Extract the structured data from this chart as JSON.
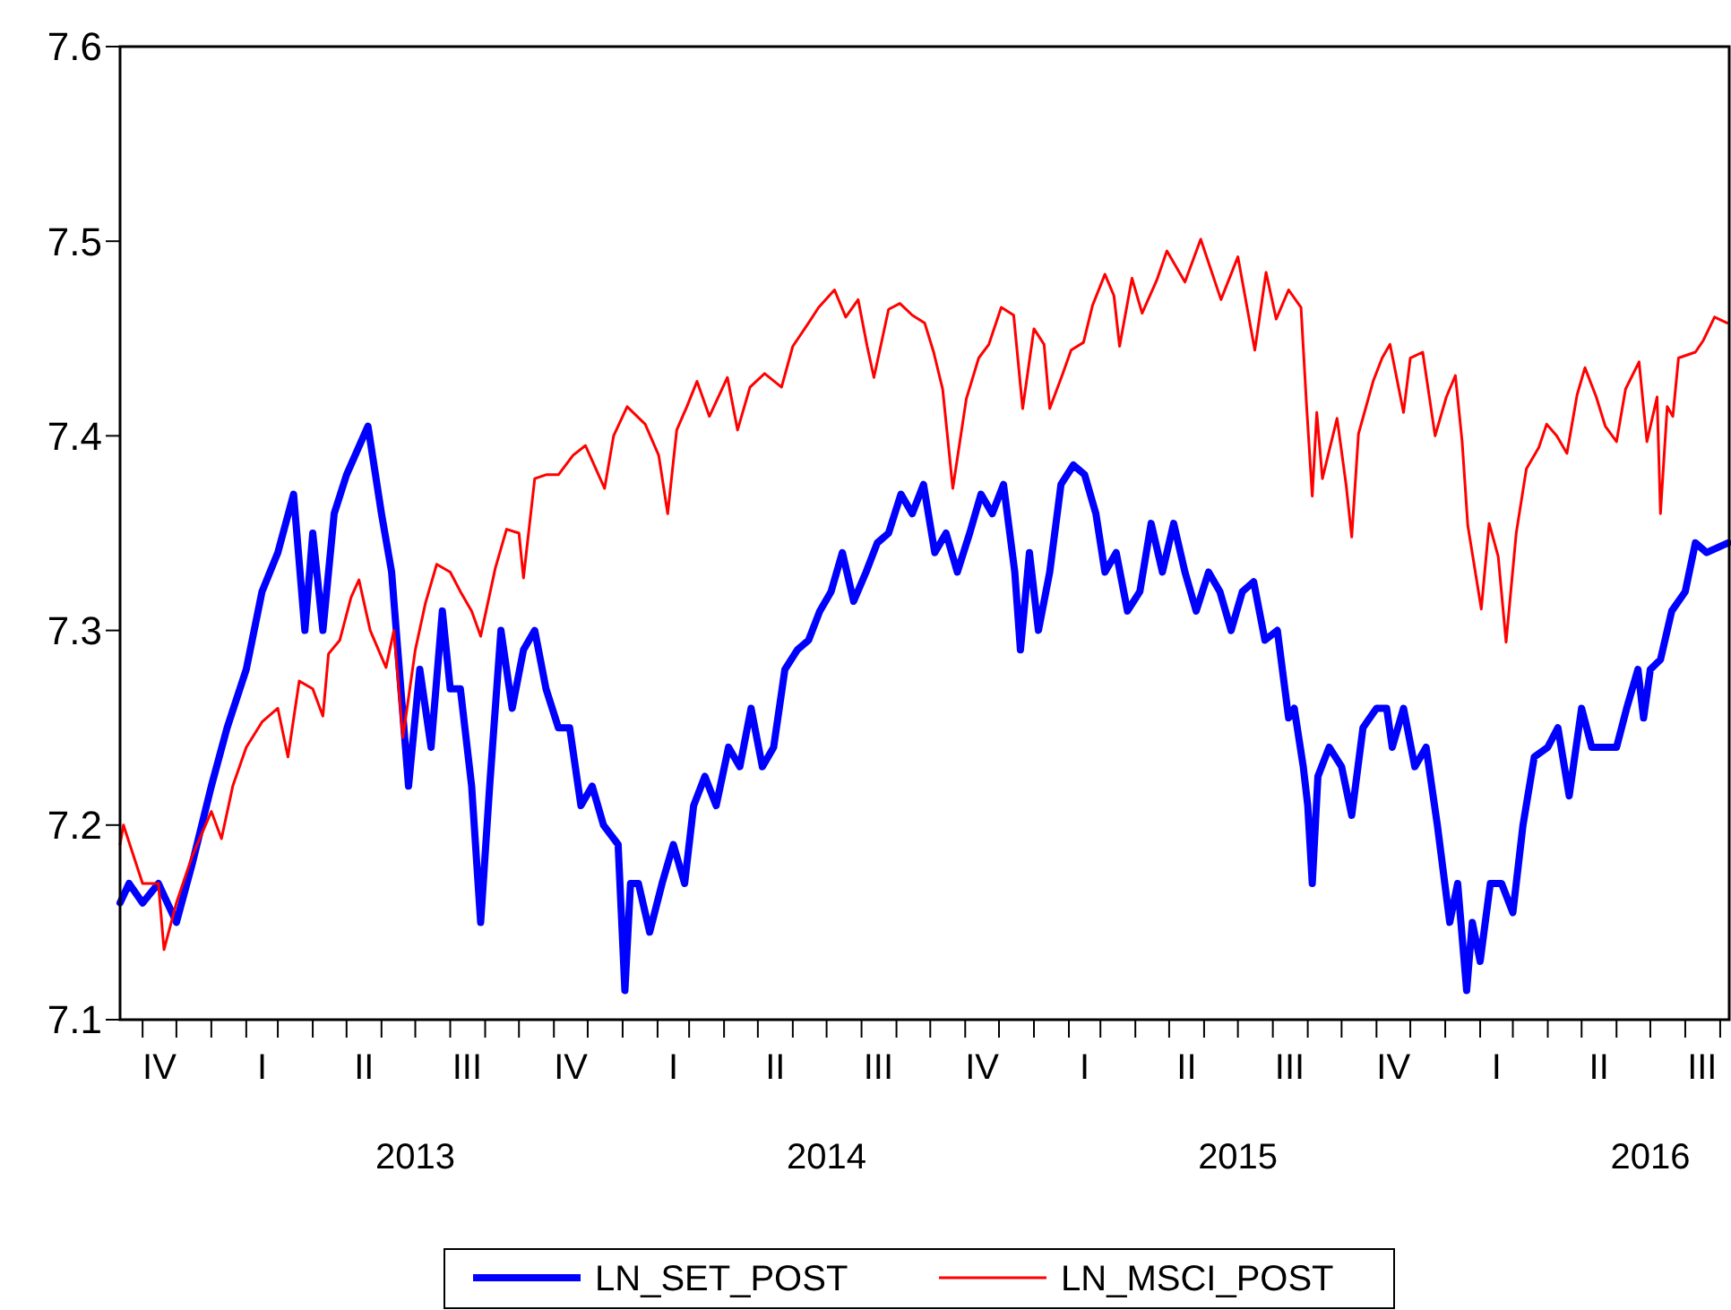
{
  "chart_data": {
    "type": "line",
    "xlim": [
      "2012-10-12",
      "2016-09-09"
    ],
    "ylim": [
      7.1,
      7.6
    ],
    "yticks": [
      7.1,
      7.2,
      7.3,
      7.4,
      7.5,
      7.6
    ],
    "xticks": [
      {
        "value": "2012-11-01",
        "label": null
      },
      {
        "value": "2012-12-01",
        "label": null
      },
      {
        "value": "2013-01-01",
        "label": null
      },
      {
        "value": "2013-02-01",
        "label": null
      },
      {
        "value": "2013-03-01",
        "label": null
      },
      {
        "value": "2013-04-01",
        "label": null
      },
      {
        "value": "2013-05-01",
        "label": null
      },
      {
        "value": "2013-06-01",
        "label": null
      },
      {
        "value": "2013-07-01",
        "label": null
      },
      {
        "value": "2013-07-01",
        "label": "2013"
      },
      {
        "value": "2013-08-01",
        "label": null
      },
      {
        "value": "2013-09-01",
        "label": null
      },
      {
        "value": "2013-10-01",
        "label": null
      },
      {
        "value": "2013-11-01",
        "label": null
      },
      {
        "value": "2013-12-01",
        "label": null
      },
      {
        "value": "2014-01-01",
        "label": null
      },
      {
        "value": "2014-02-01",
        "label": null
      },
      {
        "value": "2014-03-01",
        "label": null
      },
      {
        "value": "2014-04-01",
        "label": null
      },
      {
        "value": "2014-05-01",
        "label": null
      },
      {
        "value": "2014-06-01",
        "label": null
      },
      {
        "value": "2014-07-01",
        "label": null
      },
      {
        "value": "2014-07-01",
        "label": "2014"
      },
      {
        "value": "2014-08-01",
        "label": null
      },
      {
        "value": "2014-09-01",
        "label": null
      },
      {
        "value": "2014-10-01",
        "label": null
      },
      {
        "value": "2014-11-01",
        "label": null
      },
      {
        "value": "2014-12-01",
        "label": null
      },
      {
        "value": "2015-01-01",
        "label": null
      },
      {
        "value": "2015-02-01",
        "label": null
      },
      {
        "value": "2015-03-01",
        "label": null
      },
      {
        "value": "2015-04-01",
        "label": null
      },
      {
        "value": "2015-05-01",
        "label": null
      },
      {
        "value": "2015-06-01",
        "label": null
      },
      {
        "value": "2015-07-01",
        "label": null
      },
      {
        "value": "2015-07-01",
        "label": "2015"
      },
      {
        "value": "2015-08-01",
        "label": null
      },
      {
        "value": "2015-09-01",
        "label": null
      },
      {
        "value": "2015-10-01",
        "label": null
      },
      {
        "value": "2015-11-01",
        "label": null
      },
      {
        "value": "2015-12-01",
        "label": null
      },
      {
        "value": "2016-01-01",
        "label": null
      },
      {
        "value": "2016-02-01",
        "label": null
      },
      {
        "value": "2016-03-01",
        "label": null
      },
      {
        "value": "2016-04-01",
        "label": null
      },
      {
        "value": "2016-05-01",
        "label": null
      },
      {
        "value": "2016-06-01",
        "label": null
      },
      {
        "value": "2016-07-01",
        "label": null
      },
      {
        "value": "2016-07-01",
        "label": "2016"
      },
      {
        "value": "2016-08-01",
        "label": null
      },
      {
        "value": "2016-09-01",
        "label": null
      }
    ],
    "annotations": [
      "IV",
      "I",
      "II",
      "III",
      "IV",
      "I",
      "II",
      "III",
      "IV",
      "I",
      "II",
      "III",
      "IV",
      "I",
      "II",
      "III"
    ],
    "legend": "bottom",
    "grid": false,
    "marker": "none",
    "line_style": "solid",
    "series": [
      {
        "name": "LN_SET_POST",
        "color": "#0000ff",
        "x": [
          "2012-10-12",
          "2012-10-20",
          "2012-11-01",
          "2012-11-15",
          "2012-12-01",
          "2012-12-15",
          "2013-01-01",
          "2013-01-15",
          "2013-02-01",
          "2013-02-15",
          "2013-03-01",
          "2013-03-15",
          "2013-03-25",
          "2013-04-01",
          "2013-04-10",
          "2013-04-20",
          "2013-05-01",
          "2013-05-20",
          "2013-06-01",
          "2013-06-10",
          "2013-06-25",
          "2013-07-05",
          "2013-07-15",
          "2013-07-25",
          "2013-08-01",
          "2013-08-10",
          "2013-08-20",
          "2013-08-28",
          "2013-09-05",
          "2013-09-15",
          "2013-09-25",
          "2013-10-05",
          "2013-10-15",
          "2013-10-25",
          "2013-11-05",
          "2013-11-15",
          "2013-11-25",
          "2013-12-05",
          "2013-12-15",
          "2013-12-28",
          "2014-01-03",
          "2014-01-08",
          "2014-01-15",
          "2014-01-25",
          "2014-02-05",
          "2014-02-15",
          "2014-02-25",
          "2014-03-05",
          "2014-03-15",
          "2014-03-25",
          "2014-04-05",
          "2014-04-15",
          "2014-04-25",
          "2014-05-05",
          "2014-05-15",
          "2014-05-25",
          "2014-06-05",
          "2014-06-15",
          "2014-06-25",
          "2014-07-05",
          "2014-07-15",
          "2014-07-25",
          "2014-08-05",
          "2014-08-15",
          "2014-08-25",
          "2014-09-05",
          "2014-09-15",
          "2014-09-25",
          "2014-10-05",
          "2014-10-15",
          "2014-10-25",
          "2014-11-05",
          "2014-11-15",
          "2014-11-25",
          "2014-12-05",
          "2014-12-15",
          "2014-12-20",
          "2014-12-28",
          "2015-01-05",
          "2015-01-15",
          "2015-01-25",
          "2015-02-05",
          "2015-02-15",
          "2015-02-25",
          "2015-03-05",
          "2015-03-15",
          "2015-03-25",
          "2015-04-05",
          "2015-04-15",
          "2015-04-25",
          "2015-05-05",
          "2015-05-15",
          "2015-05-25",
          "2015-06-05",
          "2015-06-15",
          "2015-06-25",
          "2015-07-05",
          "2015-07-15",
          "2015-07-25",
          "2015-08-05",
          "2015-08-15",
          "2015-08-20",
          "2015-08-28",
          "2015-09-01",
          "2015-09-05",
          "2015-09-10",
          "2015-09-20",
          "2015-10-01",
          "2015-10-10",
          "2015-10-20",
          "2015-11-01",
          "2015-11-10",
          "2015-11-15",
          "2015-11-25",
          "2015-12-05",
          "2015-12-15",
          "2015-12-25",
          "2016-01-05",
          "2016-01-12",
          "2016-01-20",
          "2016-01-25",
          "2016-02-01",
          "2016-02-10",
          "2016-02-20",
          "2016-03-01",
          "2016-03-10",
          "2016-03-20",
          "2016-04-01",
          "2016-04-10",
          "2016-04-20",
          "2016-05-01",
          "2016-05-10",
          "2016-05-20",
          "2016-06-01",
          "2016-06-10",
          "2016-06-20",
          "2016-06-25",
          "2016-07-01",
          "2016-07-10",
          "2016-07-20",
          "2016-08-01",
          "2016-08-10",
          "2016-08-20",
          "2016-09-08"
        ],
        "values": [
          7.16,
          7.17,
          7.16,
          7.17,
          7.15,
          7.18,
          7.22,
          7.25,
          7.28,
          7.32,
          7.34,
          7.37,
          7.3,
          7.35,
          7.3,
          7.36,
          7.38,
          7.405,
          7.36,
          7.33,
          7.22,
          7.28,
          7.24,
          7.31,
          7.27,
          7.27,
          7.22,
          7.15,
          7.22,
          7.3,
          7.26,
          7.29,
          7.3,
          7.27,
          7.25,
          7.25,
          7.21,
          7.22,
          7.2,
          7.19,
          7.115,
          7.17,
          7.17,
          7.145,
          7.17,
          7.19,
          7.17,
          7.21,
          7.225,
          7.21,
          7.24,
          7.23,
          7.26,
          7.23,
          7.24,
          7.28,
          7.29,
          7.295,
          7.31,
          7.32,
          7.34,
          7.315,
          7.33,
          7.345,
          7.35,
          7.37,
          7.36,
          7.375,
          7.34,
          7.35,
          7.33,
          7.35,
          7.37,
          7.36,
          7.375,
          7.33,
          7.29,
          7.34,
          7.3,
          7.33,
          7.375,
          7.385,
          7.38,
          7.36,
          7.33,
          7.34,
          7.31,
          7.32,
          7.355,
          7.33,
          7.355,
          7.33,
          7.31,
          7.33,
          7.32,
          7.3,
          7.32,
          7.325,
          7.295,
          7.3,
          7.255,
          7.26,
          7.23,
          7.21,
          7.17,
          7.225,
          7.24,
          7.23,
          7.205,
          7.25,
          7.26,
          7.26,
          7.24,
          7.26,
          7.23,
          7.24,
          7.2,
          7.15,
          7.17,
          7.115,
          7.15,
          7.13,
          7.17,
          7.17,
          7.155,
          7.2,
          7.235,
          7.24,
          7.25,
          7.215,
          7.26,
          7.24,
          7.24,
          7.24,
          7.26,
          7.28,
          7.255,
          7.28,
          7.285,
          7.31,
          7.32,
          7.345,
          7.34,
          7.345
        ]
      },
      {
        "name": "LN_MSCI_POST",
        "color": "#ff0000",
        "x": [
          "2012-10-12",
          "2012-10-15",
          "2012-11-01",
          "2012-11-15",
          "2012-11-20",
          "2012-12-01",
          "2012-12-15",
          "2013-01-01",
          "2013-01-10",
          "2013-01-20",
          "2013-02-01",
          "2013-02-15",
          "2013-03-01",
          "2013-03-10",
          "2013-03-20",
          "2013-04-01",
          "2013-04-10",
          "2013-04-15",
          "2013-04-25",
          "2013-05-05",
          "2013-05-12",
          "2013-05-22",
          "2013-06-05",
          "2013-06-12",
          "2013-06-20",
          "2013-07-01",
          "2013-07-10",
          "2013-07-20",
          "2013-08-01",
          "2013-08-10",
          "2013-08-20",
          "2013-08-28",
          "2013-09-10",
          "2013-09-20",
          "2013-10-01",
          "2013-10-05",
          "2013-10-15",
          "2013-10-25",
          "2013-11-05",
          "2013-11-18",
          "2013-11-29",
          "2013-12-16",
          "2013-12-24",
          "2014-01-05",
          "2014-01-21",
          "2014-02-02",
          "2014-02-10",
          "2014-02-18",
          "2014-02-27",
          "2014-03-08",
          "2014-03-19",
          "2014-04-04",
          "2014-04-13",
          "2014-04-24",
          "2014-05-07",
          "2014-05-22",
          "2014-06-01",
          "2014-06-15",
          "2014-06-24",
          "2014-07-08",
          "2014-07-18",
          "2014-07-29",
          "2014-08-06",
          "2014-08-12",
          "2014-08-25",
          "2014-09-04",
          "2014-09-15",
          "2014-09-26",
          "2014-10-04",
          "2014-10-12",
          "2014-10-21",
          "2014-11-02",
          "2014-11-13",
          "2014-11-22",
          "2014-12-03",
          "2014-12-14",
          "2014-12-22",
          "2015-01-01",
          "2015-01-10",
          "2015-01-15",
          "2015-01-26",
          "2015-02-03",
          "2015-02-14",
          "2015-02-22",
          "2015-03-05",
          "2015-03-13",
          "2015-03-18",
          "2015-03-29",
          "2015-04-07",
          "2015-04-20",
          "2015-04-29",
          "2015-05-15",
          "2015-05-29",
          "2015-06-16",
          "2015-07-01",
          "2015-07-16",
          "2015-07-26",
          "2015-08-04",
          "2015-08-15",
          "2015-08-26",
          "2015-08-31",
          "2015-09-05",
          "2015-09-09",
          "2015-09-14",
          "2015-09-27",
          "2015-10-05",
          "2015-10-10",
          "2015-10-16",
          "2015-10-29",
          "2015-11-06",
          "2015-11-13",
          "2015-11-25",
          "2015-12-01",
          "2015-12-12",
          "2015-12-23",
          "2016-01-02",
          "2016-01-10",
          "2016-01-16",
          "2016-01-21",
          "2016-02-02",
          "2016-02-09",
          "2016-02-17",
          "2016-02-24",
          "2016-03-04",
          "2016-03-13",
          "2016-03-24",
          "2016-03-31",
          "2016-04-09",
          "2016-04-18",
          "2016-04-27",
          "2016-05-04",
          "2016-05-14",
          "2016-05-22",
          "2016-06-01",
          "2016-06-09",
          "2016-06-21",
          "2016-06-28",
          "2016-07-07",
          "2016-07-10",
          "2016-07-16",
          "2016-07-21",
          "2016-07-26",
          "2016-08-10",
          "2016-08-17",
          "2016-08-27",
          "2016-09-07"
        ],
        "values": [
          7.19,
          7.2,
          7.17,
          7.17,
          7.136,
          7.16,
          7.184,
          7.207,
          7.193,
          7.22,
          7.24,
          7.253,
          7.26,
          7.235,
          7.274,
          7.27,
          7.256,
          7.288,
          7.295,
          7.317,
          7.326,
          7.3,
          7.281,
          7.3,
          7.245,
          7.29,
          7.314,
          7.334,
          7.33,
          7.32,
          7.31,
          7.297,
          7.332,
          7.352,
          7.35,
          7.327,
          7.378,
          7.38,
          7.38,
          7.39,
          7.395,
          7.373,
          7.4,
          7.415,
          7.406,
          7.39,
          7.36,
          7.403,
          7.415,
          7.428,
          7.41,
          7.43,
          7.403,
          7.425,
          7.432,
          7.425,
          7.446,
          7.458,
          7.466,
          7.475,
          7.461,
          7.47,
          7.446,
          7.43,
          7.465,
          7.468,
          7.462,
          7.458,
          7.443,
          7.424,
          7.373,
          7.419,
          7.44,
          7.447,
          7.466,
          7.462,
          7.414,
          7.455,
          7.447,
          7.414,
          7.431,
          7.444,
          7.448,
          7.467,
          7.483,
          7.472,
          7.446,
          7.481,
          7.463,
          7.48,
          7.495,
          7.479,
          7.501,
          7.47,
          7.492,
          7.444,
          7.484,
          7.46,
          7.475,
          7.466,
          7.415,
          7.369,
          7.412,
          7.378,
          7.409,
          7.375,
          7.348,
          7.401,
          7.428,
          7.44,
          7.447,
          7.412,
          7.44,
          7.443,
          7.4,
          7.42,
          7.431,
          7.397,
          7.354,
          7.311,
          7.355,
          7.338,
          7.294,
          7.35,
          7.383,
          7.394,
          7.406,
          7.4,
          7.391,
          7.421,
          7.435,
          7.42,
          7.405,
          7.397,
          7.424,
          7.438,
          7.397,
          7.42,
          7.36,
          7.415,
          7.41,
          7.44,
          7.443,
          7.449,
          7.461,
          7.458
        ]
      }
    ]
  }
}
